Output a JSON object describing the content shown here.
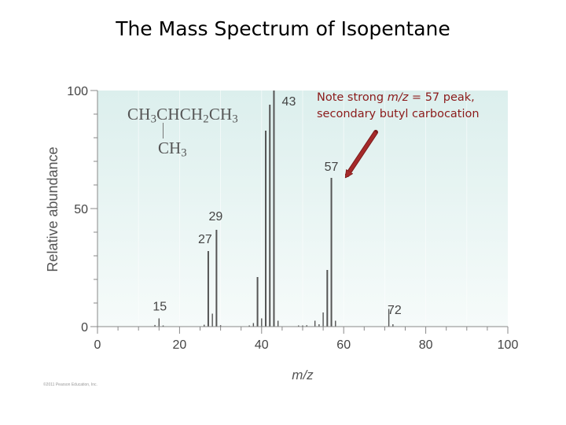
{
  "slide": {
    "title": "The Mass Spectrum of Isopentane"
  },
  "formula": {
    "main": {
      "p1": "CH",
      "s1": "3",
      "p2": "CHCH",
      "s2": "2",
      "p3": "CH",
      "s3": "3"
    },
    "branch": {
      "p1": "CH",
      "s1": "3"
    }
  },
  "annotation": {
    "pre": "Note strong ",
    "em": "m/z",
    "post": " = 57 peak,",
    "line2": "secondary butyl carbocation",
    "color": "#8b1a1a"
  },
  "credit": "©2011 Pearson Education, Inc.",
  "chart_data": {
    "type": "bar",
    "xlabel": "m/z",
    "ylabel": "Relative abundance",
    "xlim": [
      0,
      100
    ],
    "ylim": [
      0,
      100
    ],
    "x_ticks": [
      0,
      20,
      40,
      60,
      80,
      100
    ],
    "y_ticks": [
      0,
      50,
      100
    ],
    "peaks": [
      {
        "mz": 14,
        "abundance": 0.7
      },
      {
        "mz": 15,
        "abundance": 3.5
      },
      {
        "mz": 16,
        "abundance": 0.5
      },
      {
        "mz": 26,
        "abundance": 0.8
      },
      {
        "mz": 27,
        "abundance": 32
      },
      {
        "mz": 28,
        "abundance": 5.5
      },
      {
        "mz": 29,
        "abundance": 41
      },
      {
        "mz": 30,
        "abundance": 0.6
      },
      {
        "mz": 37,
        "abundance": 0.5
      },
      {
        "mz": 38,
        "abundance": 1.5
      },
      {
        "mz": 39,
        "abundance": 21
      },
      {
        "mz": 40,
        "abundance": 3.5
      },
      {
        "mz": 41,
        "abundance": 83
      },
      {
        "mz": 42,
        "abundance": 94
      },
      {
        "mz": 43,
        "abundance": 100
      },
      {
        "mz": 44,
        "abundance": 2.5
      },
      {
        "mz": 49,
        "abundance": 0.5
      },
      {
        "mz": 50,
        "abundance": 0.5
      },
      {
        "mz": 51,
        "abundance": 0.6
      },
      {
        "mz": 53,
        "abundance": 2.5
      },
      {
        "mz": 54,
        "abundance": 1
      },
      {
        "mz": 55,
        "abundance": 6
      },
      {
        "mz": 56,
        "abundance": 24
      },
      {
        "mz": 57,
        "abundance": 63
      },
      {
        "mz": 58,
        "abundance": 2.5
      },
      {
        "mz": 71,
        "abundance": 7.5
      },
      {
        "mz": 72,
        "abundance": 1
      }
    ],
    "peak_labels": [
      15,
      27,
      29,
      43,
      57,
      72
    ],
    "colors": {
      "bar": "#555555",
      "axis": "#888888",
      "bg_top": "#dcefed",
      "bg_bottom": "#f6fbfa",
      "arrow": "#a52a2a",
      "tick_label": "#444444"
    }
  }
}
